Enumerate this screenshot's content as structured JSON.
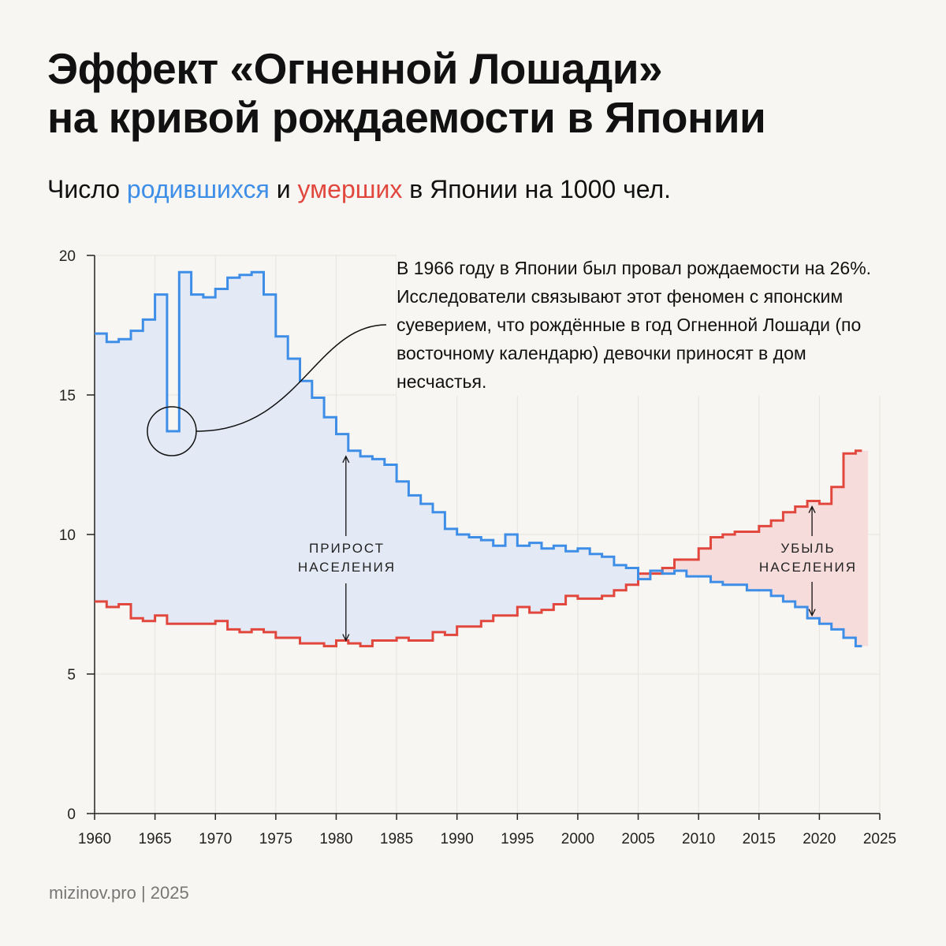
{
  "title": {
    "line1": "Эффект «Огненной Лошади»",
    "line2": "на кривой рождаемости в Японии"
  },
  "subtitle": {
    "prefix": "Число ",
    "births_word": "родившихся",
    "middle": " и ",
    "deaths_word": "умерших",
    "suffix": " в Японии на 1000 чел."
  },
  "annotation": "В 1966 году в Японии был провал рождаемости на 26%. Исследователи связывают этот феномен с японским суеверием, что рождённые в год Огненной Лошади (по восточному календарю) девочки приносят в дом несчастья.",
  "labels": {
    "growth_line1": "ПРИРОСТ",
    "growth_line2": "НАСЕЛЕНИЯ",
    "decline_line1": "УБЫЛЬ",
    "decline_line2": "НАСЕЛЕНИЯ"
  },
  "footer": "mizinov.pro | 2025",
  "colors": {
    "births": "#3e8ee8",
    "deaths": "#e2473e",
    "growth_fill": "#e3eaf6",
    "decline_fill": "#f7dcdc"
  },
  "chart_data": {
    "type": "line",
    "step": true,
    "xlim": [
      1960,
      2025
    ],
    "ylim": [
      0,
      20
    ],
    "x_ticks": [
      1960,
      1965,
      1970,
      1975,
      1980,
      1985,
      1990,
      1995,
      2000,
      2005,
      2010,
      2015,
      2020,
      2025
    ],
    "y_ticks": [
      0,
      5,
      10,
      15,
      20
    ],
    "grid": true,
    "x": [
      1960,
      1961,
      1962,
      1963,
      1964,
      1965,
      1966,
      1967,
      1968,
      1969,
      1970,
      1971,
      1972,
      1973,
      1974,
      1975,
      1976,
      1977,
      1978,
      1979,
      1980,
      1981,
      1982,
      1983,
      1984,
      1985,
      1986,
      1987,
      1988,
      1989,
      1990,
      1991,
      1992,
      1993,
      1994,
      1995,
      1996,
      1997,
      1998,
      1999,
      2000,
      2001,
      2002,
      2003,
      2004,
      2005,
      2006,
      2007,
      2008,
      2009,
      2010,
      2011,
      2012,
      2013,
      2014,
      2015,
      2016,
      2017,
      2018,
      2019,
      2020,
      2021,
      2022,
      2023
    ],
    "series": [
      {
        "key": "births",
        "values": [
          17.2,
          16.9,
          17.0,
          17.3,
          17.7,
          18.6,
          13.7,
          19.4,
          18.6,
          18.5,
          18.8,
          19.2,
          19.3,
          19.4,
          18.6,
          17.1,
          16.3,
          15.5,
          14.9,
          14.2,
          13.6,
          13.0,
          12.8,
          12.7,
          12.5,
          11.9,
          11.4,
          11.1,
          10.8,
          10.2,
          10.0,
          9.9,
          9.8,
          9.6,
          10.0,
          9.6,
          9.7,
          9.5,
          9.6,
          9.4,
          9.5,
          9.3,
          9.2,
          8.9,
          8.8,
          8.4,
          8.7,
          8.6,
          8.7,
          8.5,
          8.5,
          8.3,
          8.2,
          8.2,
          8.0,
          8.0,
          7.8,
          7.6,
          7.4,
          7.0,
          6.8,
          6.6,
          6.3,
          6.0
        ]
      },
      {
        "key": "deaths",
        "values": [
          7.6,
          7.4,
          7.5,
          7.0,
          6.9,
          7.1,
          6.8,
          6.8,
          6.8,
          6.8,
          6.9,
          6.6,
          6.5,
          6.6,
          6.5,
          6.3,
          6.3,
          6.1,
          6.1,
          6.0,
          6.2,
          6.1,
          6.0,
          6.2,
          6.2,
          6.3,
          6.2,
          6.2,
          6.5,
          6.4,
          6.7,
          6.7,
          6.9,
          7.1,
          7.1,
          7.4,
          7.2,
          7.3,
          7.5,
          7.8,
          7.7,
          7.7,
          7.8,
          8.0,
          8.2,
          8.6,
          8.6,
          8.8,
          9.1,
          9.1,
          9.5,
          9.9,
          10.0,
          10.1,
          10.1,
          10.3,
          10.5,
          10.8,
          11.0,
          11.2,
          11.1,
          11.7,
          12.9,
          13.0
        ]
      }
    ]
  }
}
